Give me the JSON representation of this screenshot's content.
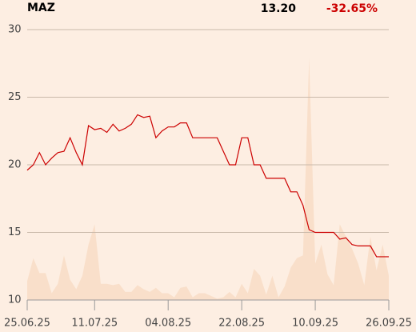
{
  "chart_data": {
    "type": "line",
    "title": "MAZ",
    "price": "13.20",
    "change": "-32.65%",
    "change_color": "#cc0000",
    "categories": [
      "25.06.25",
      null,
      null,
      null,
      null,
      null,
      null,
      null,
      null,
      null,
      null,
      "11.07.25",
      null,
      null,
      null,
      null,
      null,
      null,
      null,
      null,
      null,
      null,
      null,
      "04.08.25",
      null,
      null,
      null,
      null,
      null,
      null,
      null,
      null,
      null,
      null,
      null,
      "22.08.25",
      null,
      null,
      null,
      null,
      null,
      null,
      null,
      null,
      null,
      null,
      null,
      "10.09.25",
      null,
      null,
      null,
      null,
      null,
      null,
      null,
      null,
      null,
      null,
      null,
      "26.09.25"
    ],
    "series": [
      {
        "type": "area",
        "color": "#f9dfca",
        "values": [
          11.4,
          13.1,
          12.0,
          12.0,
          10.5,
          11.2,
          13.3,
          11.5,
          10.8,
          11.8,
          14.1,
          15.6,
          11.2,
          11.2,
          11.1,
          11.2,
          10.6,
          10.6,
          11.1,
          10.8,
          10.6,
          10.9,
          10.5,
          10.5,
          10.2,
          10.9,
          11.0,
          10.2,
          10.5,
          10.5,
          10.3,
          10.1,
          10.2,
          10.6,
          10.2,
          11.2,
          10.5,
          12.3,
          11.8,
          10.4,
          11.8,
          10.2,
          11.0,
          12.4,
          13.1,
          13.3,
          27.9,
          12.7,
          14.1,
          11.9,
          11.1,
          15.6,
          14.7,
          13.8,
          12.7,
          11.1,
          14.7,
          12.2,
          14.1,
          11.8
        ]
      },
      {
        "type": "line",
        "color": "#cc0000",
        "values": [
          19.6,
          20.0,
          20.9,
          20.0,
          20.5,
          20.9,
          21.0,
          22.0,
          20.9,
          20.0,
          22.9,
          22.6,
          22.7,
          22.4,
          23.0,
          22.5,
          22.7,
          23.0,
          23.7,
          23.5,
          23.6,
          22.0,
          22.5,
          22.8,
          22.8,
          23.1,
          23.1,
          22.0,
          22.0,
          22.0,
          22.0,
          22.0,
          21.0,
          20.0,
          20.0,
          22.0,
          22.0,
          20.0,
          20.0,
          19.0,
          19.0,
          19.0,
          19.0,
          18.0,
          18.0,
          17.0,
          15.2,
          15.0,
          15.0,
          15.0,
          15.0,
          14.5,
          14.6,
          14.1,
          14.0,
          14.0,
          14.0,
          13.2,
          13.2,
          13.2
        ]
      }
    ],
    "ylim": [
      10,
      30
    ],
    "yticks": [
      10,
      15,
      20,
      25,
      30
    ],
    "grid": true
  }
}
